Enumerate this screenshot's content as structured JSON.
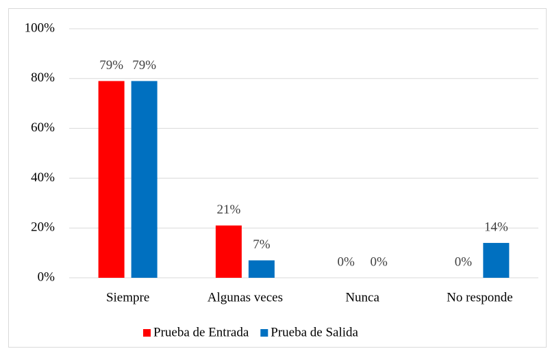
{
  "chart_data": {
    "type": "bar",
    "categories": [
      "Siempre",
      "Algunas veces",
      "Nunca",
      "No responde"
    ],
    "series": [
      {
        "name": "Prueba de Entrada",
        "color": "#ff0000",
        "values": [
          79,
          21,
          0,
          0
        ],
        "value_labels": [
          "79%",
          "21%",
          "0%",
          "0%"
        ]
      },
      {
        "name": "Prueba de Salida",
        "color": "#0070c0",
        "values": [
          79,
          7,
          0,
          14
        ],
        "value_labels": [
          "79%",
          "7%",
          "0%",
          "14%"
        ]
      }
    ],
    "ylim": [
      0,
      100
    ],
    "yticks": [
      {
        "value": 0,
        "label": "0%"
      },
      {
        "value": 20,
        "label": "20%"
      },
      {
        "value": 40,
        "label": "40%"
      },
      {
        "value": 60,
        "label": "60%"
      },
      {
        "value": 80,
        "label": "80%"
      },
      {
        "value": 100,
        "label": "100%"
      }
    ],
    "grid": true,
    "legend": "bottom"
  }
}
